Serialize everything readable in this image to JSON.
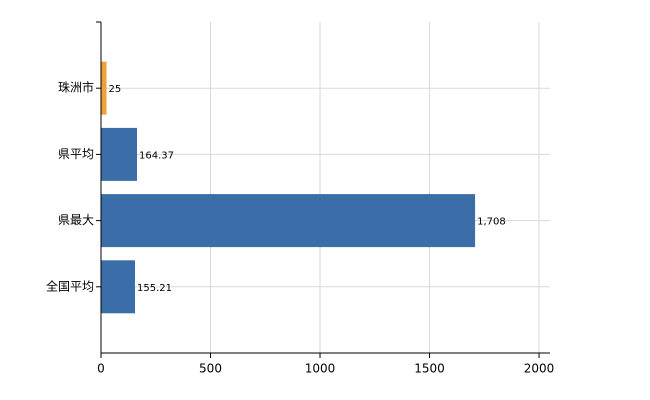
{
  "chart_data": {
    "type": "hbar",
    "categories": [
      "珠洲市",
      "県平均",
      "県最大",
      "全国平均"
    ],
    "values": [
      25,
      164.37,
      1708,
      155.21
    ],
    "value_labels": [
      "25",
      "164.37",
      "1,708",
      "155.21"
    ],
    "colors": [
      "#f0a038",
      "#3b6ea8",
      "#3b6ea8",
      "#3b6ea8"
    ],
    "xlim": [
      0,
      2050
    ],
    "xticks": [
      0,
      500,
      1000,
      1500,
      2000
    ],
    "grid": true
  }
}
